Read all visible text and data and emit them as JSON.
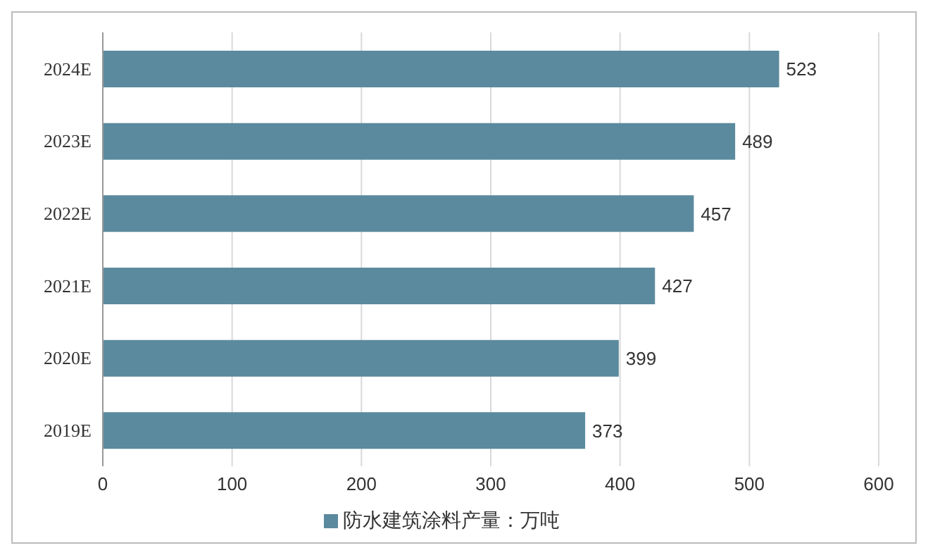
{
  "chart_data": {
    "type": "bar",
    "orientation": "horizontal",
    "categories": [
      "2024E",
      "2023E",
      "2022E",
      "2021E",
      "2020E",
      "2019E"
    ],
    "series": [
      {
        "name": "防水建筑涂料产量：万吨",
        "color": "#5b8a9e",
        "values": [
          523,
          489,
          457,
          427,
          399,
          373
        ]
      }
    ],
    "xlim": [
      0,
      600
    ],
    "xticks": [
      0,
      100,
      200,
      300,
      400,
      500,
      600
    ],
    "grid": "x",
    "legend": "bottom",
    "data_labels": true
  }
}
